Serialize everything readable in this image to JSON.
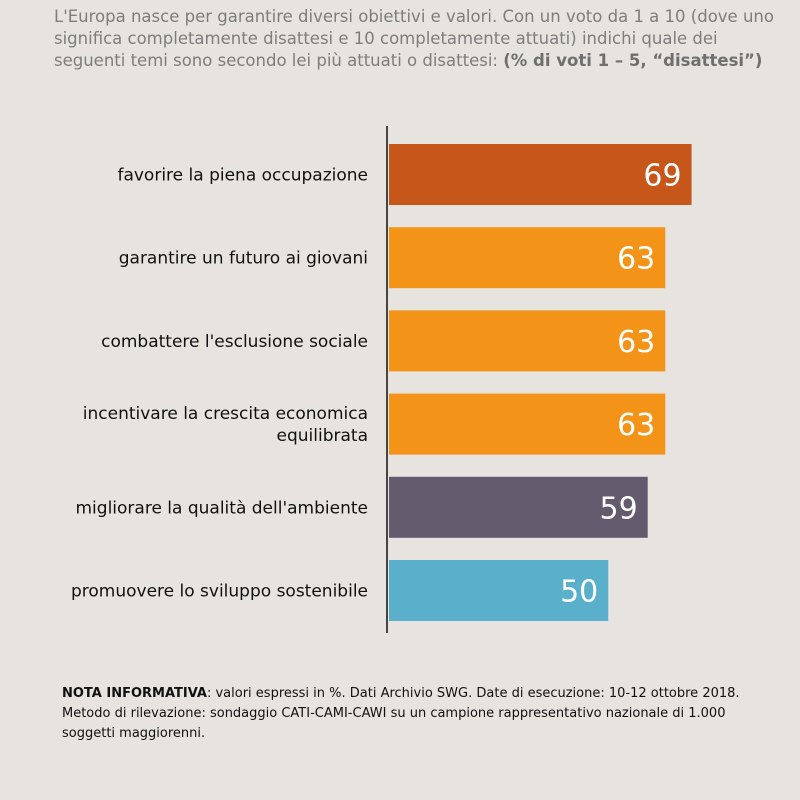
{
  "question": {
    "text": "L'Europa nasce per garantire diversi obiettivi e valori. Con un voto da 1 a 10 (dove uno significa completamente disattesi e 10 completamente attuati)  indichi quale dei seguenti temi sono secondo lei più attuati o disattesi: ",
    "emphasis": "(% di voti 1 – 5, “disattesi”)"
  },
  "chart_data": {
    "type": "bar",
    "orientation": "horizontal",
    "categories": [
      [
        "favorire la piena occupazione"
      ],
      [
        "garantire un futuro ai giovani"
      ],
      [
        "combattere l'esclusione sociale"
      ],
      [
        "incentivare la crescita economica",
        "equilibrata"
      ],
      [
        "migliorare la qualità dell'ambiente"
      ],
      [
        "promuovere lo sviluppo sostenibile"
      ]
    ],
    "values": [
      69,
      63,
      63,
      63,
      59,
      50
    ],
    "bar_colors": [
      "#c65619",
      "#f39317",
      "#f39317",
      "#f39317",
      "#635a6d",
      "#5aafcb"
    ],
    "value_label_color": "#ffffff",
    "category_label_color": "#111111",
    "axis_color": "#111111",
    "grid": false,
    "legend": "none"
  },
  "note": {
    "title": "NOTA INFORMATIVA",
    "text": ": valori espressi in %. Dati Archivio SWG. Date di esecuzione: 10-12 ottobre 2018. Metodo di rilevazione: sondaggio CATI-CAMI-CAWI su un campione rappresentativo nazionale di 1.000 soggetti maggiorenni."
  }
}
